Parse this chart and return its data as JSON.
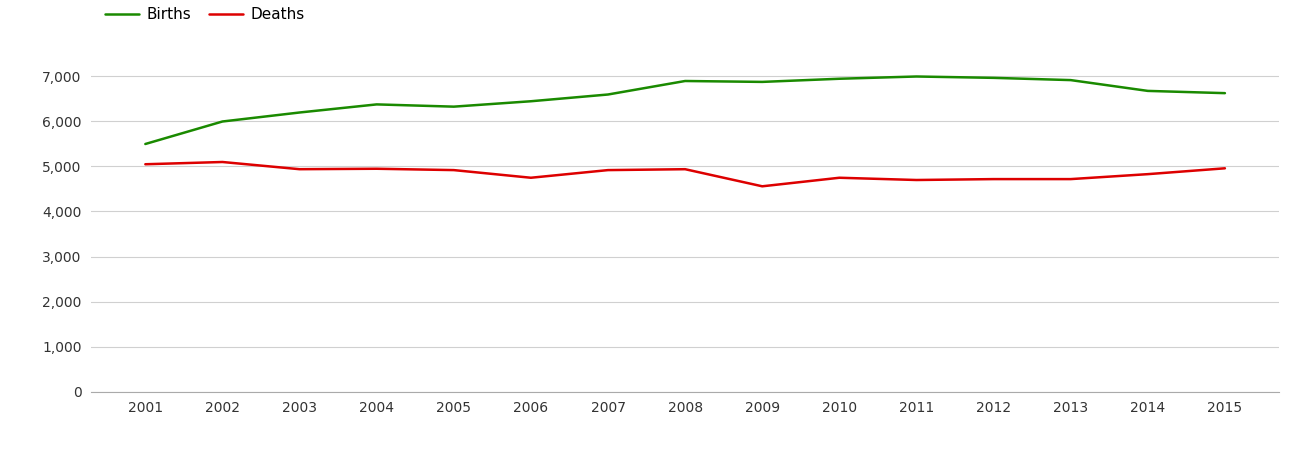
{
  "years": [
    2001,
    2002,
    2003,
    2004,
    2005,
    2006,
    2007,
    2008,
    2009,
    2010,
    2011,
    2012,
    2013,
    2014,
    2015
  ],
  "births": [
    5500,
    6000,
    6200,
    6380,
    6330,
    6450,
    6600,
    6900,
    6880,
    6950,
    7000,
    6970,
    6920,
    6680,
    6630
  ],
  "deaths": [
    5050,
    5100,
    4940,
    4950,
    4920,
    4750,
    4920,
    4940,
    4560,
    4750,
    4700,
    4720,
    4720,
    4830,
    4960
  ],
  "births_color": "#1a8a00",
  "deaths_color": "#dd0000",
  "births_label": "Births",
  "deaths_label": "Deaths",
  "ylim": [
    0,
    7500
  ],
  "yticks": [
    0,
    1000,
    2000,
    3000,
    4000,
    5000,
    6000,
    7000
  ],
  "grid_color": "#d0d0d0",
  "background_color": "#ffffff",
  "line_width": 1.8,
  "legend_fontsize": 11,
  "tick_fontsize": 10,
  "tick_color": "#333333"
}
